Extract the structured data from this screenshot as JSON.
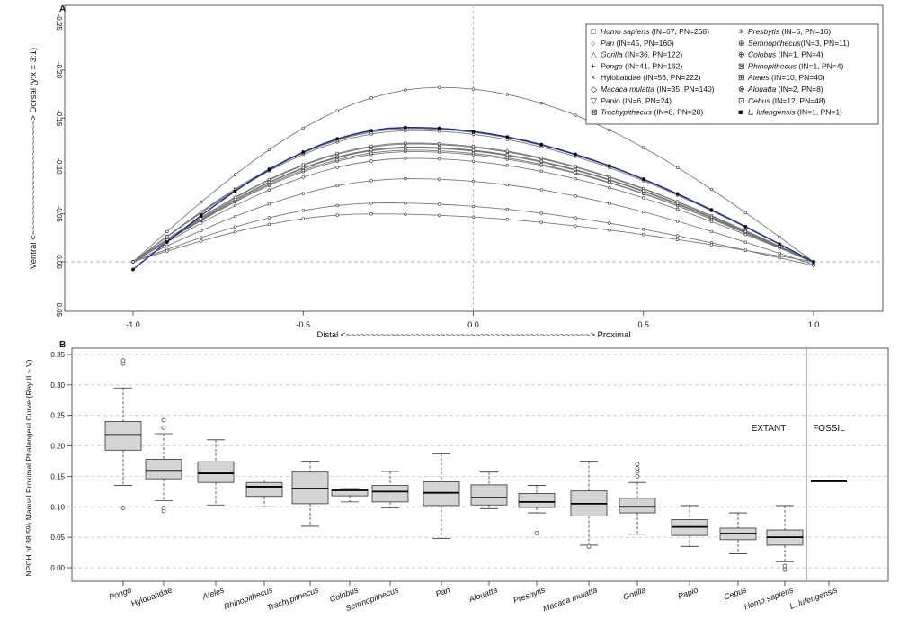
{
  "chart_data": [
    {
      "type": "line",
      "panel_label": "A",
      "xlabel": "Distal <~~~~~~~~~~~~~~~~~~~~~~~~~~~~~~~~~~~~~~~~~~~~~~~~~> Proximal",
      "ylabel": "Ventral <~~~~~~~~~~~~~~~~~~~~~~~> Dorsal (y:x = 3:1)",
      "xlim": [
        -1.2,
        1.2
      ],
      "ylim": [
        0.05,
        -0.25
      ],
      "x_ticks": [
        -1.0,
        -0.5,
        0.0,
        0.5,
        1.0
      ],
      "x_tick_labels": [
        "-1.0",
        "-0.5",
        "0.0",
        "0.5",
        "1.0"
      ],
      "y_ticks": [
        -0.25,
        -0.2,
        -0.15,
        -0.1,
        -0.05,
        0.0,
        0.05
      ],
      "y_tick_labels": [
        "-0.25",
        "-0.20",
        "-0.15",
        "-0.10",
        "-0.05",
        "0.00",
        "0.05"
      ],
      "reference_lines": {
        "x": 0.0,
        "y": 0.0
      },
      "legend_position": "top-right",
      "series": [
        {
          "name": "Homo sapiens",
          "suffix": " (IN=67, PN=268)",
          "italic": true,
          "marker": "□",
          "peak": -0.088,
          "peak_x": -0.18,
          "endpoint_y": 0.003,
          "color": "#777777"
        },
        {
          "name": "Pan",
          "suffix": " (IN=45, PN=160)",
          "italic": true,
          "marker": "○",
          "peak": -0.115,
          "peak_x": -0.18,
          "endpoint_y": 0.0,
          "color": "#777777"
        },
        {
          "name": "Gorilla",
          "suffix": " (IN=36, PN=122)",
          "italic": true,
          "marker": "△",
          "peak": -0.12,
          "peak_x": -0.18,
          "endpoint_y": 0.001,
          "color": "#777777"
        },
        {
          "name": "Pongo",
          "suffix": " (IN=41, PN=162)",
          "italic": true,
          "marker": "+",
          "peak": -0.182,
          "peak_x": -0.1,
          "endpoint_y": 0.0,
          "color": "#777777"
        },
        {
          "name": "Hylobatidae",
          "suffix": " (IN=56, PN=222)",
          "italic": false,
          "marker": "×",
          "peak": -0.14,
          "peak_x": -0.18,
          "endpoint_y": 0.0,
          "color": "#777777"
        },
        {
          "name": "Macaca mulatta",
          "suffix": " (IN=35, PN=140)",
          "italic": true,
          "marker": "◇",
          "peak": -0.117,
          "peak_x": -0.18,
          "endpoint_y": 0.001,
          "color": "#777777"
        },
        {
          "name": "Papio",
          "suffix": " (IN=6, PN=24)",
          "italic": true,
          "marker": "▽",
          "peak": -0.063,
          "peak_x": -0.25,
          "endpoint_y": 0.004,
          "color": "#777777"
        },
        {
          "name": "Trachypithecus",
          "suffix": " (IN=8, PN=28)",
          "italic": true,
          "marker": "⊠",
          "peak": -0.123,
          "peak_x": -0.18,
          "endpoint_y": 0.0,
          "color": "#777777"
        },
        {
          "name": "Presbytis",
          "suffix": " (IN=5, PN=16)",
          "italic": true,
          "marker": "✳",
          "peak": -0.108,
          "peak_x": -0.18,
          "endpoint_y": 0.0,
          "color": "#777777"
        },
        {
          "name": "Semnopithecus",
          "suffix": "(IN=3, PN=11)",
          "italic": true,
          "marker": "⊕",
          "peak": -0.119,
          "peak_x": -0.18,
          "endpoint_y": 0.0,
          "color": "#777777"
        },
        {
          "name": "Colobus",
          "suffix": " (IN=1, PN=4)",
          "italic": true,
          "marker": "⊕",
          "peak": -0.137,
          "peak_x": -0.18,
          "endpoint_y": 0.0,
          "color": "#777777"
        },
        {
          "name": "Rhinopithecus",
          "suffix": " (IN=1, PN=4)",
          "italic": true,
          "marker": "⊠",
          "peak": -0.124,
          "peak_x": -0.18,
          "endpoint_y": 0.0,
          "color": "#777777"
        },
        {
          "name": "Ateles",
          "suffix": " (IN=10, PN=40)",
          "italic": true,
          "marker": "⊞",
          "peak": -0.139,
          "peak_x": -0.18,
          "endpoint_y": 0.0,
          "color": "#777777"
        },
        {
          "name": "Alouatta",
          "suffix": " (IN=2, PN=8)",
          "italic": true,
          "marker": "⊗",
          "peak": -0.12,
          "peak_x": -0.18,
          "endpoint_y": 0.0,
          "color": "#777777"
        },
        {
          "name": "Cebus",
          "suffix": " (IN=12, PN=48)",
          "italic": true,
          "marker": "⊡",
          "peak": -0.05,
          "peak_x": -0.3,
          "endpoint_y": 0.0,
          "color": "#777777"
        },
        {
          "name": "L. lufengensis",
          "suffix": " (IN=1, PN=1)",
          "italic": true,
          "marker": "■",
          "peak": -0.145,
          "peak_x": -0.2,
          "endpoint_y": 0.0,
          "start_y": 0.008,
          "color": "#1f2d8a"
        }
      ]
    },
    {
      "type": "box",
      "panel_label": "B",
      "ylabel": "NPCH of 88.5% Manual Proximal Phalangeal Curve (Ray II ~ V)",
      "ylim": [
        -0.02,
        0.36
      ],
      "y_ticks": [
        0.0,
        0.05,
        0.1,
        0.15,
        0.2,
        0.25,
        0.3,
        0.35
      ],
      "y_tick_labels": [
        "0.00",
        "0.05",
        "0.10",
        "0.15",
        "0.20",
        "0.25",
        "0.30",
        "0.35"
      ],
      "group_labels": {
        "extant": "EXTANT",
        "fossil": "FOSSIL"
      },
      "categories": [
        "Pongo",
        "Hylobatidae",
        "Ateles",
        "Rhinopithecus",
        "Trachypithecus",
        "Colobus",
        "Semnopithecus",
        "Pan",
        "Alouatta",
        "Presbytis",
        "Macaca mulatta",
        "Gorilla",
        "Papio",
        "Cebus",
        "Homo sapiens",
        "L. lufengensis"
      ],
      "italic": [
        true,
        false,
        true,
        true,
        true,
        true,
        true,
        true,
        true,
        true,
        true,
        true,
        true,
        true,
        true,
        true
      ],
      "boxes": [
        {
          "min": 0.135,
          "q1": 0.193,
          "median": 0.218,
          "q3": 0.24,
          "max": 0.295,
          "outliers": [
            0.098,
            0.335,
            0.34
          ]
        },
        {
          "min": 0.11,
          "q1": 0.146,
          "median": 0.159,
          "q3": 0.178,
          "max": 0.22,
          "outliers": [
            0.093,
            0.098,
            0.23,
            0.242
          ]
        },
        {
          "min": 0.103,
          "q1": 0.14,
          "median": 0.155,
          "q3": 0.174,
          "max": 0.21,
          "outliers": []
        },
        {
          "min": 0.1,
          "q1": 0.117,
          "median": 0.133,
          "q3": 0.14,
          "max": 0.144,
          "outliers": []
        },
        {
          "min": 0.068,
          "q1": 0.105,
          "median": 0.13,
          "q3": 0.157,
          "max": 0.175,
          "outliers": []
        },
        {
          "min": 0.108,
          "q1": 0.118,
          "median": 0.127,
          "q3": 0.129,
          "max": 0.13,
          "outliers": []
        },
        {
          "min": 0.098,
          "q1": 0.108,
          "median": 0.125,
          "q3": 0.135,
          "max": 0.158,
          "outliers": []
        },
        {
          "min": 0.048,
          "q1": 0.102,
          "median": 0.123,
          "q3": 0.141,
          "max": 0.187,
          "outliers": []
        },
        {
          "min": 0.097,
          "q1": 0.103,
          "median": 0.115,
          "q3": 0.136,
          "max": 0.157,
          "outliers": []
        },
        {
          "min": 0.09,
          "q1": 0.099,
          "median": 0.108,
          "q3": 0.122,
          "max": 0.135,
          "outliers": [
            0.057
          ]
        },
        {
          "min": 0.037,
          "q1": 0.085,
          "median": 0.105,
          "q3": 0.126,
          "max": 0.175,
          "outliers": [
            0.035
          ]
        },
        {
          "min": 0.055,
          "q1": 0.09,
          "median": 0.1,
          "q3": 0.114,
          "max": 0.14,
          "outliers": [
            0.15,
            0.158,
            0.163,
            0.17
          ]
        },
        {
          "min": 0.035,
          "q1": 0.053,
          "median": 0.067,
          "q3": 0.079,
          "max": 0.102,
          "outliers": []
        },
        {
          "min": 0.023,
          "q1": 0.046,
          "median": 0.056,
          "q3": 0.065,
          "max": 0.09,
          "outliers": []
        },
        {
          "min": 0.01,
          "q1": 0.037,
          "median": 0.05,
          "q3": 0.062,
          "max": 0.102,
          "outliers": [
            -0.003,
            0.003
          ]
        },
        {
          "value": 0.142,
          "single": true
        }
      ]
    }
  ]
}
